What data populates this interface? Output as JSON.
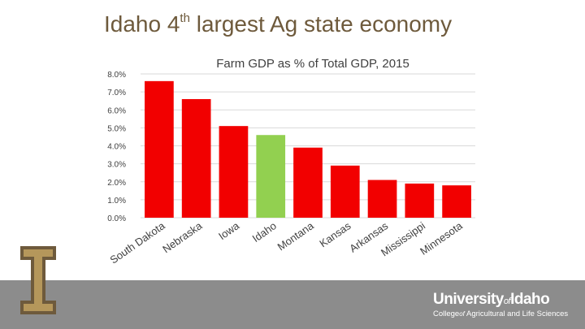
{
  "slide": {
    "title_prefix": "Idaho 4",
    "title_sup": "th",
    "title_suffix": " largest Ag state economy"
  },
  "footer": {
    "university_a": "University",
    "university_of": "of",
    "university_b": "Idaho",
    "college_a": "College",
    "college_of": "of",
    "college_b": " Agricultural and Life Sciences"
  },
  "logo": {
    "letter": "I"
  },
  "colors": {
    "bar": "#f20000",
    "highlight": "#92d050",
    "title": "#6e5a3c",
    "footer": "#8c8c8c",
    "logo_gold": "#b5975b"
  },
  "chart_data": {
    "type": "bar",
    "title": "Farm GDP as % of Total GDP, 2015",
    "categories": [
      "South Dakota",
      "Nebraska",
      "Iowa",
      "Idaho",
      "Montana",
      "Kansas",
      "Arkansas",
      "Mississippi",
      "Minnesota"
    ],
    "values": [
      7.6,
      6.6,
      5.1,
      4.6,
      3.9,
      2.9,
      2.1,
      1.9,
      1.8
    ],
    "highlight": "Idaho",
    "yticks": [
      "0.0%",
      "1.0%",
      "2.0%",
      "3.0%",
      "4.0%",
      "5.0%",
      "6.0%",
      "7.0%",
      "8.0%"
    ],
    "ylim": [
      0,
      8
    ],
    "grid": true
  }
}
